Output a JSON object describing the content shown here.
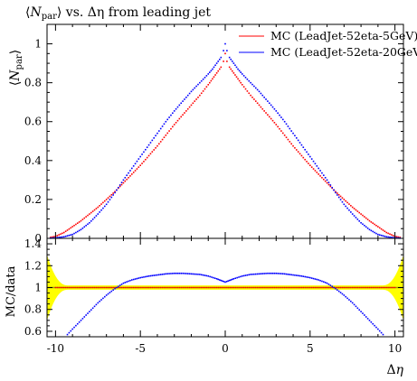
{
  "chart_data": [
    {
      "type": "scatter",
      "title": "⟨N_par⟩ vs. Δη from leading jet",
      "title_parts": {
        "bracket_open": "⟨",
        "n": "N",
        "sub": "par",
        "bracket_close": "⟩",
        "rest": " vs. Δη from leading jet"
      },
      "ylabel_parts": {
        "n": "N",
        "sub": "par"
      },
      "xlim": [
        -10.5,
        10.5
      ],
      "ylim": [
        0,
        1.1
      ],
      "y_ticks": [
        0,
        0.2,
        0.4,
        0.6,
        0.8,
        1
      ],
      "y_tick_labels": [
        "0",
        "0.2",
        "0.4",
        "0.6",
        "0.8",
        "1"
      ],
      "legend_position": "top-right",
      "series": [
        {
          "name": "MC (LeadJet-52eta-5GeV)",
          "color": "#ff0000",
          "x": [
            -10.3,
            -10,
            -9.5,
            -9,
            -8.5,
            -8,
            -7.5,
            -7,
            -6.5,
            -6,
            -5.5,
            -5,
            -4.5,
            -4,
            -3.5,
            -3,
            -2.5,
            -2,
            -1.5,
            -1,
            -0.75,
            -0.5,
            -0.25,
            -0.1,
            0,
            0.1,
            0.25,
            0.5,
            0.75,
            1,
            1.5,
            2,
            2.5,
            3,
            3.5,
            4,
            4.5,
            5,
            5.5,
            6,
            6.5,
            7,
            7.5,
            8,
            8.5,
            9,
            9.5,
            10,
            10.3
          ],
          "y": [
            0.005,
            0.01,
            0.03,
            0.06,
            0.09,
            0.125,
            0.16,
            0.2,
            0.24,
            0.285,
            0.33,
            0.375,
            0.425,
            0.475,
            0.53,
            0.585,
            0.635,
            0.685,
            0.735,
            0.79,
            0.82,
            0.85,
            0.88,
            0.91,
            0.95,
            0.91,
            0.88,
            0.85,
            0.82,
            0.79,
            0.735,
            0.685,
            0.635,
            0.585,
            0.53,
            0.475,
            0.425,
            0.375,
            0.33,
            0.285,
            0.24,
            0.2,
            0.16,
            0.125,
            0.09,
            0.06,
            0.03,
            0.01,
            0.005
          ]
        },
        {
          "name": "MC (LeadJet-52eta-20GeV)",
          "color": "#0000ff",
          "x": [
            -10.3,
            -10,
            -9.5,
            -9,
            -8.5,
            -8,
            -7.5,
            -7,
            -6.5,
            -6,
            -5.5,
            -5,
            -4.5,
            -4,
            -3.5,
            -3,
            -2.5,
            -2,
            -1.5,
            -1,
            -0.75,
            -0.5,
            -0.25,
            -0.1,
            0,
            0.1,
            0.25,
            0.5,
            0.75,
            1,
            1.5,
            2,
            2.5,
            3,
            3.5,
            4,
            4.5,
            5,
            5.5,
            6,
            6.5,
            7,
            7.5,
            8,
            8.5,
            9,
            9.5,
            10,
            10.3
          ],
          "y": [
            0.001,
            0.003,
            0.008,
            0.02,
            0.045,
            0.08,
            0.125,
            0.175,
            0.235,
            0.3,
            0.36,
            0.42,
            0.48,
            0.54,
            0.6,
            0.655,
            0.705,
            0.755,
            0.8,
            0.845,
            0.87,
            0.9,
            0.93,
            0.965,
            1.0,
            0.965,
            0.93,
            0.9,
            0.87,
            0.845,
            0.8,
            0.755,
            0.705,
            0.655,
            0.6,
            0.54,
            0.48,
            0.42,
            0.36,
            0.3,
            0.235,
            0.175,
            0.125,
            0.08,
            0.045,
            0.02,
            0.008,
            0.003,
            0.001
          ]
        }
      ]
    },
    {
      "type": "scatter",
      "ylabel": "MC/data",
      "xlabel_parts": {
        "delta": "Δ",
        "eta": "η"
      },
      "xlim": [
        -10.5,
        10.5
      ],
      "ylim": [
        0.55,
        1.45
      ],
      "x_ticks": [
        -10,
        -5,
        0,
        5,
        10
      ],
      "x_tick_labels": [
        "-10",
        "-5",
        "0",
        "5",
        "10"
      ],
      "y_ticks": [
        0.6,
        0.8,
        1,
        1.2,
        1.4
      ],
      "y_tick_labels": [
        "0.6",
        "0.8",
        "1",
        "1.2",
        "1.4"
      ],
      "reference_band_color": "#ffff00",
      "reference_line_color": "#a0a000",
      "series": [
        {
          "color": "#ff0000",
          "x": [
            -10,
            -5,
            0,
            5,
            10
          ],
          "y": [
            1,
            1,
            1,
            1,
            1
          ]
        },
        {
          "color": "#0000ff",
          "x": [
            -9.3,
            -9,
            -8.5,
            -8,
            -7.5,
            -7,
            -6.5,
            -6,
            -5.5,
            -5,
            -4.5,
            -4,
            -3.5,
            -3,
            -2.5,
            -2,
            -1.5,
            -1,
            -0.5,
            -0.25,
            0,
            0.25,
            0.5,
            1,
            1.5,
            2,
            2.5,
            3,
            3.5,
            4,
            4.5,
            5,
            5.5,
            6,
            6.5,
            7,
            7.5,
            8,
            8.5,
            9,
            9.3
          ],
          "y": [
            0.57,
            0.62,
            0.7,
            0.78,
            0.86,
            0.93,
            0.99,
            1.04,
            1.07,
            1.09,
            1.105,
            1.115,
            1.125,
            1.13,
            1.13,
            1.125,
            1.12,
            1.105,
            1.08,
            1.065,
            1.05,
            1.065,
            1.08,
            1.105,
            1.12,
            1.125,
            1.13,
            1.13,
            1.125,
            1.115,
            1.105,
            1.09,
            1.07,
            1.04,
            0.99,
            0.93,
            0.86,
            0.78,
            0.7,
            0.62,
            0.57
          ]
        }
      ]
    }
  ]
}
